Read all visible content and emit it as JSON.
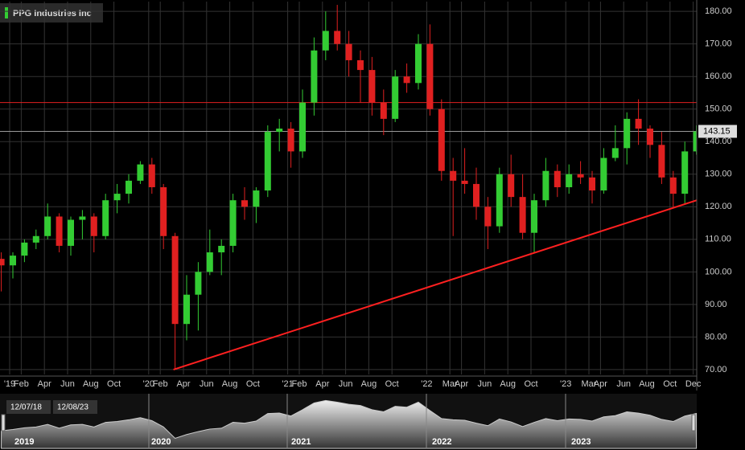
{
  "chart_data": {
    "type": "candlestick",
    "title": "PPG Industries Inc",
    "categories": [
      null,
      "'19",
      "Feb",
      null,
      "Apr",
      null,
      "Jun",
      null,
      "Aug",
      null,
      "Oct",
      null,
      null,
      "'20",
      "Feb",
      null,
      "Apr",
      null,
      "Jun",
      null,
      "Aug",
      null,
      "Oct",
      null,
      null,
      "'21",
      "Feb",
      null,
      "Apr",
      null,
      "Jun",
      null,
      "Aug",
      null,
      "Oct",
      null,
      null,
      "'22",
      null,
      "Mar",
      "Apr",
      null,
      "Jun",
      null,
      "Aug",
      null,
      "Oct",
      null,
      null,
      "'23",
      null,
      "Mar",
      "Apr",
      null,
      "Jun",
      null,
      "Aug",
      null,
      "Oct",
      null,
      "Dec"
    ],
    "open": [
      104,
      102,
      105,
      109,
      111,
      117,
      108,
      116,
      117,
      111,
      122,
      124,
      128,
      133,
      126,
      111,
      84,
      93,
      100,
      106,
      108,
      122,
      120,
      125,
      143,
      144,
      137,
      152,
      168,
      174,
      170,
      165,
      162,
      152,
      147,
      160,
      158,
      170,
      150,
      131,
      128,
      127,
      120,
      114,
      130,
      123,
      112,
      122,
      131,
      126,
      130,
      129,
      125,
      135,
      138,
      147,
      144,
      139,
      129,
      124,
      137
    ],
    "high": [
      106,
      106,
      110,
      113,
      121,
      118,
      117,
      119,
      118,
      124,
      127,
      130,
      134,
      135,
      127,
      112,
      99,
      103,
      113,
      110,
      124,
      126,
      126,
      145,
      147,
      146,
      156,
      172,
      180,
      182,
      174,
      168,
      166,
      156,
      162,
      164,
      173,
      176,
      153,
      135,
      138,
      132,
      123,
      132,
      136,
      130,
      124,
      135,
      133,
      133,
      134,
      131,
      138,
      145,
      149,
      153,
      145,
      143,
      131,
      140,
      145
    ],
    "low": [
      94,
      98,
      103,
      107,
      110,
      106,
      105,
      110,
      106,
      110,
      118,
      121,
      127,
      124,
      107,
      70,
      79,
      82,
      99,
      99,
      106,
      116,
      115,
      123,
      137,
      132,
      135,
      148,
      165,
      168,
      160,
      152,
      148,
      142,
      146,
      155,
      156,
      148,
      128,
      111,
      124,
      116,
      107,
      112,
      120,
      110,
      106,
      120,
      123,
      124,
      127,
      121,
      124,
      134,
      133,
      139,
      135,
      127,
      120,
      121,
      136
    ],
    "close": [
      102,
      105,
      109,
      111,
      117,
      108,
      116,
      117,
      111,
      122,
      124,
      128,
      133,
      126,
      111,
      84,
      93,
      100,
      106,
      108,
      122,
      120,
      125,
      143,
      144,
      137,
      152,
      168,
      174,
      170,
      165,
      162,
      152,
      147,
      160,
      158,
      170,
      150,
      131,
      128,
      127,
      120,
      114,
      130,
      123,
      112,
      122,
      131,
      126,
      130,
      129,
      125,
      135,
      138,
      147,
      144,
      139,
      129,
      124,
      137,
      143.15
    ],
    "up_color": "#33cc33",
    "down_color": "#e02020",
    "last_value": 143.15,
    "resistance": 152,
    "trendline": [
      70,
      122
    ],
    "ylim": [
      68.5,
      183
    ],
    "yticks": [
      {
        "value": 70,
        "label": "70.00"
      },
      {
        "value": 80,
        "label": "80.00"
      },
      {
        "value": 90,
        "label": "90.00"
      },
      {
        "value": 100,
        "label": "100.00"
      },
      {
        "value": 110,
        "label": "110.00"
      },
      {
        "value": 120,
        "label": "120.00"
      },
      {
        "value": 130,
        "label": "130.00"
      },
      {
        "value": 140,
        "label": "140.00"
      },
      {
        "value": 150,
        "label": "150.00"
      },
      {
        "value": 160,
        "label": "160.00"
      },
      {
        "value": 170,
        "label": "170.00"
      },
      {
        "value": 180,
        "label": "180.00"
      }
    ],
    "grid": true,
    "navigator": {
      "start": "12/07/18",
      "end": "12/08/23",
      "years": [
        "2019",
        "2020",
        "2021",
        "2022",
        "2023"
      ]
    }
  }
}
